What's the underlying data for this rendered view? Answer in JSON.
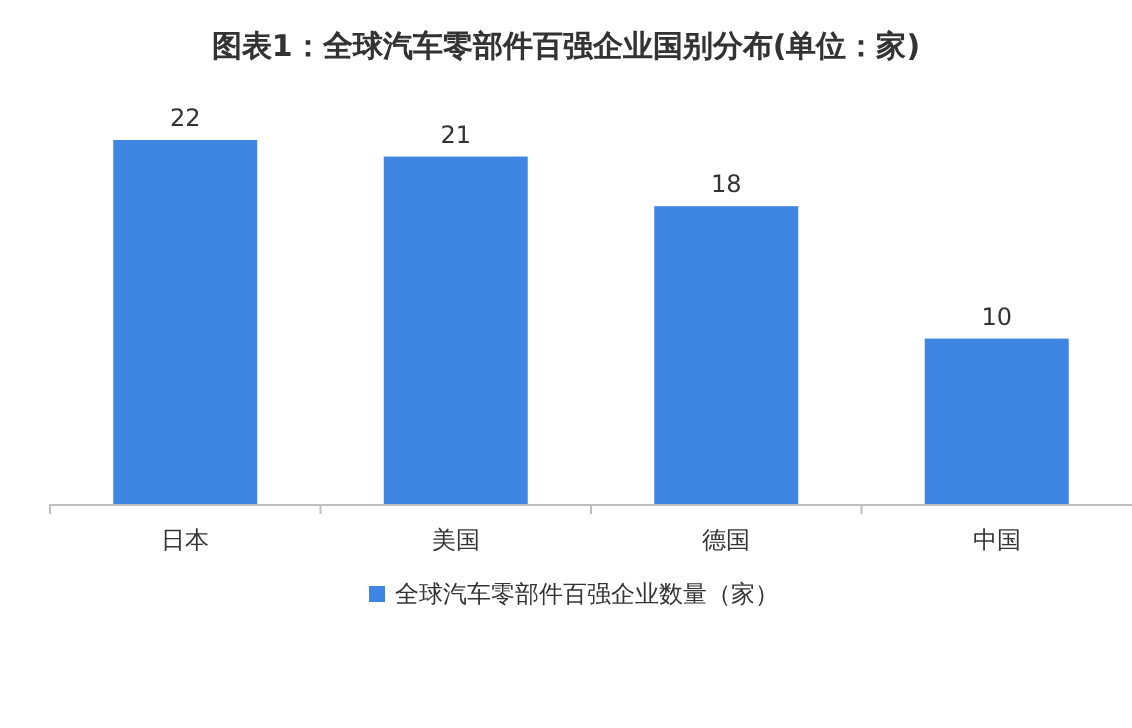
{
  "chart_data": {
    "type": "bar",
    "title": "图表1：全球汽车零部件百强企业国别分布(单位：家)",
    "categories": [
      "日本",
      "美国",
      "德国",
      "中国"
    ],
    "series": [
      {
        "name": "全球汽车零部件百强企业数量（家）",
        "color": "#3f86e3",
        "values": [
          22,
          21,
          18,
          10
        ]
      }
    ],
    "data_labels": true,
    "legend": "bottom"
  }
}
